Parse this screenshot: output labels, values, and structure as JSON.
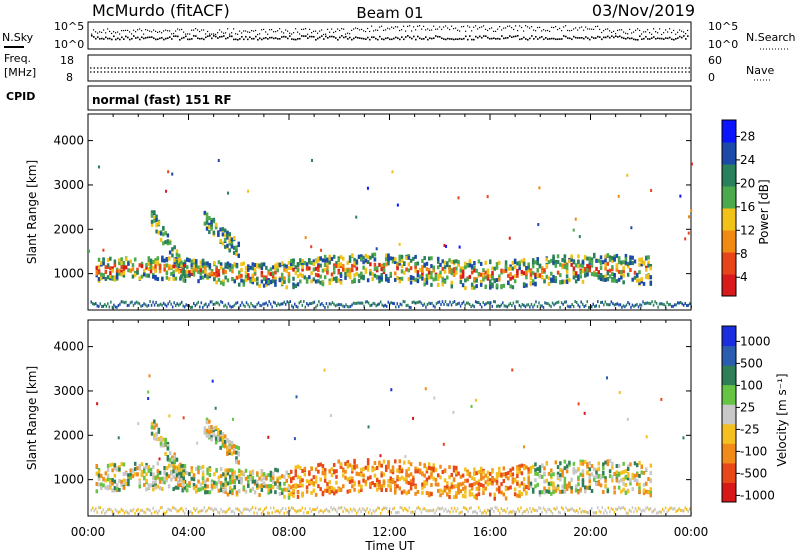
{
  "header": {
    "station": "McMurdo (fitACF)",
    "beam": "Beam 01",
    "date": "03/Nov/2019"
  },
  "panels": {
    "nsky": {
      "left_label": "N.Sky",
      "right_label": "N.Search",
      "left_ticks": [
        "10^5",
        "10^0"
      ],
      "right_ticks": [
        "10^5",
        "10^0"
      ]
    },
    "freq": {
      "left_label_1": "Freq.",
      "left_label_2": "[MHz]",
      "right_label": "Nave",
      "left_ticks": [
        "18",
        "8"
      ],
      "right_ticks": [
        "60",
        "0"
      ]
    },
    "cpid": {
      "label": "CPID",
      "value": "normal (fast) 151 RF"
    }
  },
  "chart_data": [
    {
      "type": "heatmap",
      "name": "power",
      "ylabel": "Slant Range [km]",
      "xlabel": "",
      "y_ticks": [
        "4000",
        "3000",
        "2000",
        "1000"
      ],
      "y_tick_values": [
        4000,
        3000,
        2000,
        1000
      ],
      "ylim": [
        180,
        4600
      ],
      "x_ticks": [],
      "colorbar": {
        "label": "Power [dB]",
        "ticks": [
          "28",
          "24",
          "20",
          "16",
          "12",
          "8",
          "4"
        ],
        "range": [
          0,
          30
        ],
        "colors": [
          "#0a14ff",
          "#1c4aa8",
          "#2a7f5c",
          "#4caa4c",
          "#f2c218",
          "#f08a12",
          "#e8441a",
          "#d81a1a"
        ]
      },
      "features": [
        {
          "label": "main band",
          "time_hours": [
            0.3,
            22.4
          ],
          "range_km": [
            800,
            1300
          ]
        },
        {
          "label": "arc 1",
          "time_hours": [
            2.5,
            3.8
          ],
          "range_km": [
            1000,
            2300
          ]
        },
        {
          "label": "arc 2",
          "time_hours": [
            4.6,
            6.0
          ],
          "range_km": [
            1500,
            2200
          ]
        }
      ]
    },
    {
      "type": "heatmap",
      "name": "velocity",
      "ylabel": "Slant Range [km]",
      "xlabel": "Time UT",
      "y_ticks": [
        "4000",
        "3000",
        "2000",
        "1000"
      ],
      "y_tick_values": [
        4000,
        3000,
        2000,
        1000
      ],
      "ylim": [
        180,
        4600
      ],
      "x_ticks": [
        "00:00",
        "04:00",
        "08:00",
        "12:00",
        "16:00",
        "20:00",
        "00:00"
      ],
      "x_tick_hours": [
        0,
        4,
        8,
        12,
        16,
        20,
        24
      ],
      "xlim_hours": [
        0,
        24
      ],
      "colorbar": {
        "label": "Velocity [m s⁻¹]",
        "ticks": [
          "1000",
          "500",
          "100",
          "25",
          "-25",
          "-100",
          "-500",
          "-1000"
        ],
        "colors": [
          "#1a2ee0",
          "#2a5cb0",
          "#2e7f58",
          "#66c444",
          "#c8c8c8",
          "#f4c020",
          "#f08a18",
          "#e84818",
          "#d81818"
        ]
      },
      "features": [
        {
          "label": "main band",
          "time_hours": [
            0.3,
            22.4
          ],
          "range_km": [
            700,
            1300
          ]
        },
        {
          "label": "arc 1",
          "time_hours": [
            2.5,
            3.8
          ],
          "range_km": [
            1000,
            2200
          ]
        },
        {
          "label": "arc 2",
          "time_hours": [
            4.6,
            6.0
          ],
          "range_km": [
            1500,
            2200
          ]
        }
      ]
    }
  ]
}
